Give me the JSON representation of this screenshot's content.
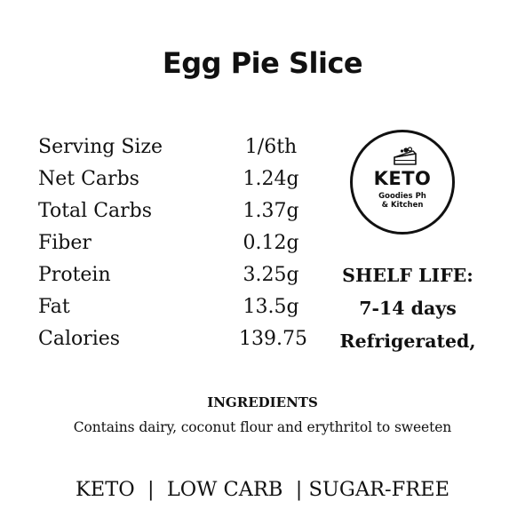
{
  "product": {
    "title": "Egg Pie Slice"
  },
  "nutrition": [
    {
      "label": "Serving Size",
      "value": "1/6th"
    },
    {
      "label": "Net Carbs",
      "value": "1.24g"
    },
    {
      "label": "Total Carbs",
      "value": "1.37g"
    },
    {
      "label": "Fiber",
      "value": "0.12g"
    },
    {
      "label": "Protein",
      "value": "3.25g"
    },
    {
      "label": "Fat",
      "value": "13.5g"
    },
    {
      "label": "Calories",
      "value": "139.75"
    }
  ],
  "logo": {
    "main": "KETO",
    "sub_line1": "Goodies Ph",
    "sub_line2": "& Kitchen",
    "icon": "cake-slice-icon"
  },
  "shelf_life": {
    "heading": "SHELF LIFE:",
    "duration": "7-14 days",
    "storage": "Refrigerated,"
  },
  "ingredients": {
    "heading": "INGREDIENTS",
    "text": "Contains dairy, coconut flour and erythritol to sweeten"
  },
  "tags": {
    "line": "KETO  |  LOW CARB  | SUGAR-FREE"
  }
}
